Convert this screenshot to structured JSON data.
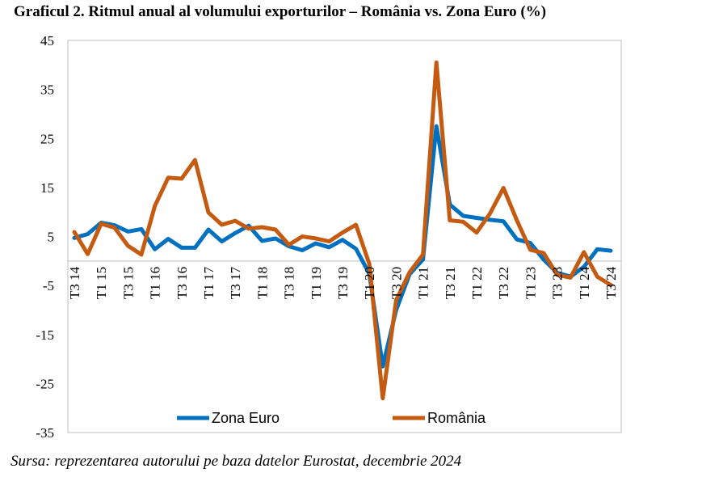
{
  "title": "Graficul 2. Ritmul anual al volumului exporturilor – România vs. Zona Euro (%)",
  "source": "Sursa: reprezentarea autorului pe baza datelor Eurostat, decembrie 2024",
  "chart_data": {
    "type": "line",
    "title": "Graficul 2. Ritmul anual al volumului exporturilor – România vs. Zona Euro (%)",
    "xlabel": "",
    "ylabel": "",
    "ylim": [
      -35,
      45
    ],
    "yticks": [
      45,
      35,
      25,
      15,
      5,
      -5,
      -15,
      -25,
      -35
    ],
    "grid": false,
    "legend_position": "bottom",
    "x_tick_labels": [
      "T3 14",
      "T1 15",
      "T3 15",
      "T1 16",
      "T3 16",
      "T1 17",
      "T3 17",
      "T1 18",
      "T3 18",
      "T1 19",
      "T3 19",
      "T1 20",
      "T3 20",
      "T1 21",
      "T3 21",
      "T1 22",
      "T3 22",
      "T1 23",
      "T3 23",
      "T1 24",
      "T3 24"
    ],
    "x": [
      "T3 14",
      "T4 14",
      "T1 15",
      "T2 15",
      "T3 15",
      "T4 15",
      "T1 16",
      "T2 16",
      "T3 16",
      "T4 16",
      "T1 17",
      "T2 17",
      "T3 17",
      "T4 17",
      "T1 18",
      "T2 18",
      "T3 18",
      "T4 18",
      "T1 19",
      "T2 19",
      "T3 19",
      "T4 19",
      "T1 20",
      "T2 20",
      "T3 20",
      "T4 20",
      "T1 21",
      "T2 21",
      "T3 21",
      "T4 21",
      "T1 22",
      "T2 22",
      "T3 22",
      "T4 22",
      "T1 23",
      "T2 23",
      "T3 23",
      "T4 23",
      "T1 24",
      "T2 24",
      "T3 24"
    ],
    "series": [
      {
        "name": "Zona Euro",
        "color": "#0070C0",
        "values": [
          4.7,
          5.5,
          7.8,
          7.3,
          6,
          6.5,
          2.4,
          4.5,
          2.7,
          2.7,
          6.4,
          4,
          5.7,
          7.2,
          4.1,
          4.6,
          3,
          2.2,
          3.6,
          2.8,
          4.3,
          2.5,
          -2.6,
          -21.5,
          -10,
          -2.7,
          0.3,
          27.5,
          11.5,
          9.2,
          8.8,
          8.4,
          8.1,
          4.4,
          3.7,
          0.3,
          -2.4,
          -3.2,
          -1.2,
          2.4,
          2.1
        ]
      },
      {
        "name": "România",
        "color": "#C55A11",
        "values": [
          5.9,
          1.4,
          7.6,
          6.8,
          3.1,
          1.3,
          11.2,
          17,
          16.8,
          20.6,
          9.9,
          7.4,
          8.2,
          6.6,
          6.9,
          6.4,
          3.3,
          5,
          4.6,
          4,
          5.8,
          7.4,
          -0.6,
          -28,
          -8,
          -2.3,
          1.3,
          40.5,
          8.3,
          8,
          5.8,
          9.7,
          14.9,
          8.3,
          2.3,
          1.6,
          -2.8,
          -3.4,
          1.8,
          -3.2,
          -4.9
        ]
      }
    ]
  }
}
